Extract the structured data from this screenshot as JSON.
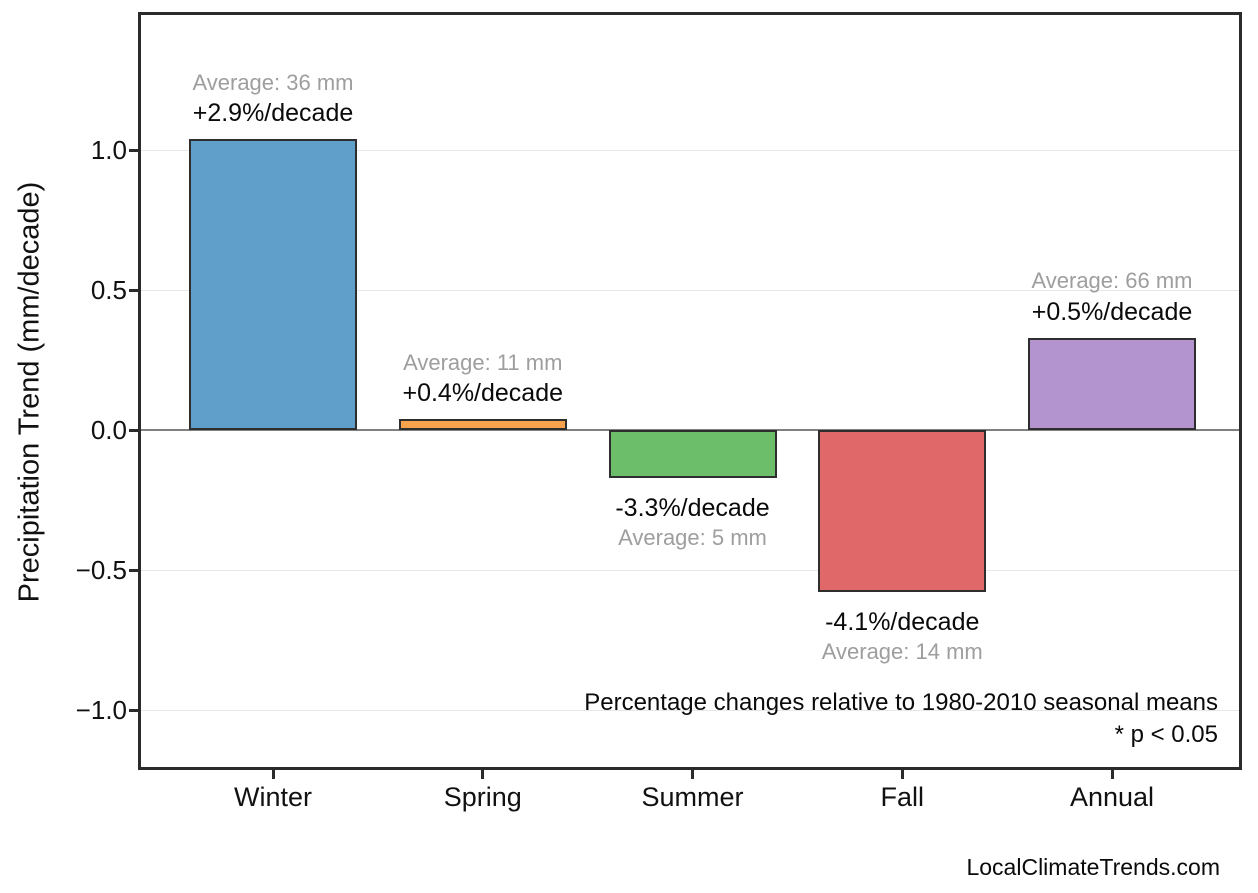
{
  "chart_data": {
    "type": "bar",
    "title": "",
    "categories": [
      "Winter",
      "Spring",
      "Summer",
      "Fall",
      "Annual"
    ],
    "values": [
      1.04,
      0.04,
      -0.17,
      -0.58,
      0.33
    ],
    "bar_colors": [
      "#619fcb",
      "#faa24c",
      "#6cbe6b",
      "#e06868",
      "#b394cf"
    ],
    "bar_edge_color": "#2e2e2e",
    "bar_annotations": [
      {
        "average": "Average: 36 mm",
        "percent": "+2.9%/decade"
      },
      {
        "average": "Average: 11 mm",
        "percent": "+0.4%/decade"
      },
      {
        "average": "Average: 5 mm",
        "percent": "-3.3%/decade"
      },
      {
        "average": "Average: 14 mm",
        "percent": "-4.1%/decade"
      },
      {
        "average": "Average: 66 mm",
        "percent": "+0.5%/decade"
      }
    ],
    "xlabel": "",
    "ylabel": "Precipitation Trend (mm/decade)",
    "yticks": [
      1.0,
      0.5,
      0.0,
      -0.5,
      -1.0
    ],
    "ytick_labels": [
      "1.0",
      "0.5",
      "0.0",
      "−0.5",
      "−1.0"
    ],
    "ylim": [
      -1.22,
      1.48
    ],
    "grid": true,
    "legend": "none",
    "footnotes": [
      "Percentage changes relative to 1980-2010 seasonal means",
      "* p < 0.05"
    ],
    "watermark": "LocalClimateTrends.com",
    "colors": {
      "zero_line": "#808080",
      "gridline": "#e7e7e7",
      "axis_border": "#2b2b2b",
      "annotation_gray": "#9e9e9e",
      "text": "#0a0a0a"
    }
  }
}
